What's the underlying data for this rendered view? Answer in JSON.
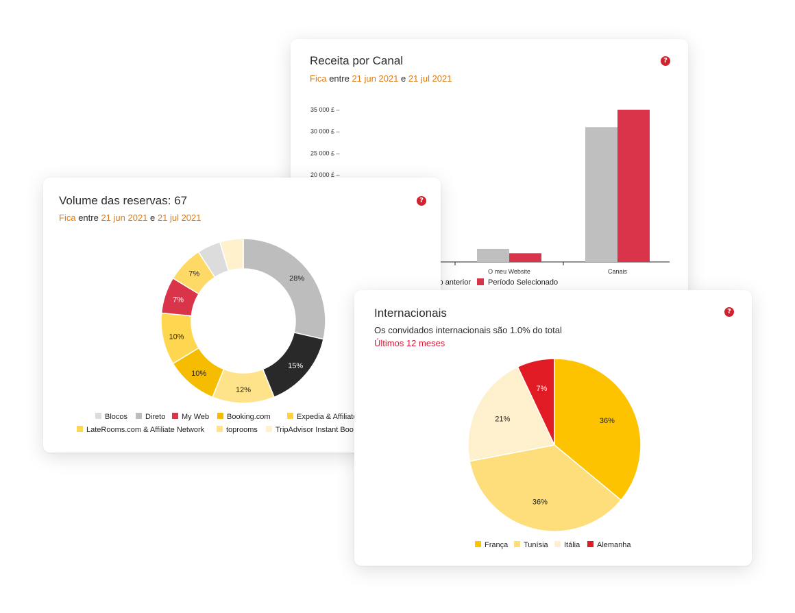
{
  "revenue_card": {
    "title": "Receita por Canal",
    "subtitle_prefix": "Fica",
    "subtitle_between": "entre",
    "subtitle_from": "21 jun 2021",
    "subtitle_and": "e",
    "subtitle_to": "21 jul 2021",
    "help_label": "?"
  },
  "bookings_card": {
    "title": "Volume das reservas: 67",
    "subtitle_prefix": "Fica",
    "subtitle_between": "entre",
    "subtitle_from": "21 jun 2021",
    "subtitle_and": "e",
    "subtitle_to": "21 jul 2021",
    "help_label": "?"
  },
  "intl_card": {
    "title": "Internacionais",
    "description": "Os convidados internacionais são 1.0% do total",
    "period": "Últimos 12 meses",
    "help_label": "?"
  },
  "colors": {
    "accent_red": "#d0222f",
    "date_orange": "#e07b10",
    "bar_previous": "#bfbfbf",
    "bar_selected": "#d9344a"
  },
  "chart_data": [
    {
      "id": "revenue",
      "type": "bar",
      "categories": [
        "",
        "O meu Website",
        "Canais"
      ],
      "y_ticks": [
        "35 000 £ –",
        "30 000 £ –",
        "25 000 £ –",
        "20 000 £ –"
      ],
      "ylim": [
        0,
        35000
      ],
      "series": [
        {
          "name": "o anterior",
          "color": "#bfbfbf",
          "values": [
            0,
            3000,
            31000
          ]
        },
        {
          "name": "Período Selecionado",
          "color": "#d9344a",
          "values": [
            0,
            2000,
            35000
          ]
        }
      ]
    },
    {
      "id": "bookings",
      "type": "pie",
      "donut": true,
      "legend": [
        {
          "label": "Blocos",
          "color": "#dcdcdc"
        },
        {
          "label": "Direto",
          "color": "#bdbdbd"
        },
        {
          "label": "My Web",
          "color": "#d9344a"
        },
        {
          "label": "Booking.com",
          "color": "#f5bc00"
        },
        {
          "label": "Expedia & Affiliate N",
          "color": "#fed341"
        },
        {
          "label": "LateRooms.com & Affiliate Network",
          "color": "#ffd64f"
        },
        {
          "label": "toprooms",
          "color": "#ffe38a"
        },
        {
          "label": "TripAdvisor Instant Boo",
          "color": "#fff1cc"
        }
      ],
      "slices": [
        {
          "value": 28,
          "label": "28%",
          "color": "#bdbdbd"
        },
        {
          "value": 15,
          "label": "15%",
          "color": "#292929"
        },
        {
          "value": 12,
          "label": "12%",
          "color": "#ffe38a"
        },
        {
          "value": 10,
          "label": "10%",
          "color": "#f5bc00"
        },
        {
          "value": 10,
          "label": "10%",
          "color": "#ffd64f"
        },
        {
          "value": 7,
          "label": "7%",
          "color": "#d9344a"
        },
        {
          "value": 7,
          "label": "7%",
          "color": "#ffd966"
        },
        {
          "value": 4.5,
          "label": "",
          "color": "#dcdcdc"
        },
        {
          "value": 4.5,
          "label": "",
          "color": "#fff1cc"
        }
      ]
    },
    {
      "id": "international",
      "type": "pie",
      "legend": [
        {
          "label": "França",
          "color": "#fdc300"
        },
        {
          "label": "Tunísia",
          "color": "#fede7a"
        },
        {
          "label": "Itália",
          "color": "#fef0cc"
        },
        {
          "label": "Alemanha",
          "color": "#e11b23"
        }
      ],
      "slices": [
        {
          "value": 36,
          "label": "36%",
          "color": "#fdc300"
        },
        {
          "value": 36,
          "label": "36%",
          "color": "#fede7a"
        },
        {
          "value": 21,
          "label": "21%",
          "color": "#fef0cc"
        },
        {
          "value": 7,
          "label": "7%",
          "color": "#e11b23"
        }
      ]
    }
  ]
}
